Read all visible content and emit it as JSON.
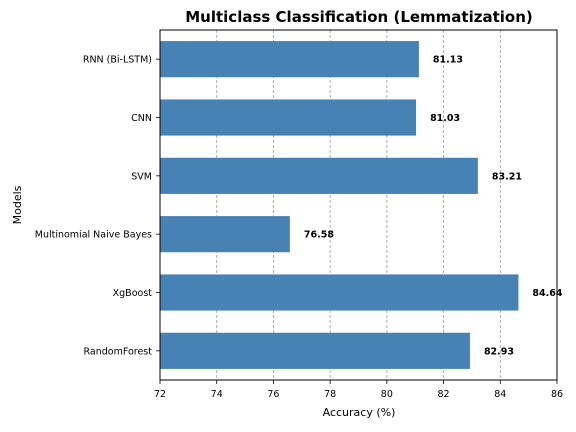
{
  "chart_data": {
    "type": "bar",
    "orientation": "horizontal",
    "title": "Multiclass Classification (Lemmatization)",
    "xlabel": "Accuracy (%)",
    "ylabel": "Models",
    "categories": [
      "RNN (Bi-LSTM)",
      "CNN",
      "SVM",
      "Multinomial Naive Bayes",
      "XgBoost",
      "RandomForest"
    ],
    "values": [
      81.13,
      81.03,
      83.21,
      76.58,
      84.64,
      82.93
    ],
    "value_labels": [
      "81.13",
      "81.03",
      "83.21",
      "76.58",
      "84.64",
      "82.93"
    ],
    "xlim": [
      72,
      86
    ],
    "xticks": [
      72,
      74,
      76,
      78,
      80,
      82,
      84,
      86
    ],
    "xtick_labels": [
      "72",
      "74",
      "76",
      "78",
      "80",
      "82",
      "84",
      "86"
    ],
    "grid": "x-dashed",
    "bar_color": "#4682b4"
  }
}
